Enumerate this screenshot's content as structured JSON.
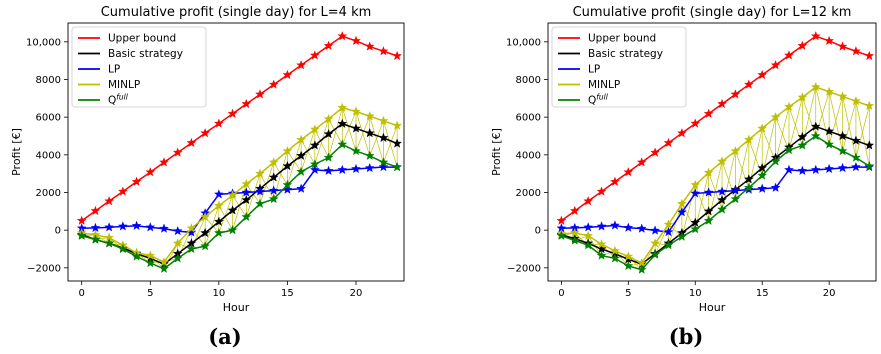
{
  "chart_data": [
    {
      "type": "line",
      "title": "Cumulative profit (single day) for L=4 km",
      "xlabel": "Hour",
      "ylabel": "Profit [€]",
      "xlim": [
        -1,
        23.5
      ],
      "ylim": [
        -2700,
        11000
      ],
      "xticks": [
        0,
        5,
        10,
        15,
        20
      ],
      "xtick_labels": [
        "0",
        "5",
        "10",
        "15",
        "20"
      ],
      "yticks": [
        -2000,
        0,
        2000,
        4000,
        6000,
        8000,
        10000
      ],
      "ytick_labels": [
        "−2000",
        "0",
        "2000",
        "4000",
        "6000",
        "8000",
        "10,000"
      ],
      "legend_position": "top-left",
      "hatched_band": "between MINLP and Q-full",
      "grid": false,
      "sublabel": "(a)",
      "x": [
        0,
        1,
        2,
        3,
        4,
        5,
        6,
        7,
        8,
        9,
        10,
        11,
        12,
        13,
        14,
        15,
        16,
        17,
        18,
        19,
        20,
        21,
        22,
        23
      ],
      "series": [
        {
          "name": "Upper bound",
          "color": "#ff0000",
          "marker": "star",
          "values": [
            500,
            1020,
            1540,
            2050,
            2570,
            3080,
            3600,
            4120,
            4630,
            5150,
            5660,
            6180,
            6700,
            7210,
            7730,
            8240,
            8760,
            9280,
            9790,
            10300,
            10050,
            9750,
            9500,
            9250
          ]
        },
        {
          "name": "Basic strategy",
          "color": "#000000",
          "marker": "star",
          "values": [
            -250,
            -500,
            -700,
            -950,
            -1250,
            -1500,
            -1800,
            -1250,
            -700,
            -150,
            450,
            1050,
            1600,
            2200,
            2800,
            3400,
            3950,
            4500,
            5100,
            5650,
            5400,
            5150,
            4900,
            4600
          ]
        },
        {
          "name": "LP",
          "color": "#0000ff",
          "marker": "star",
          "values": [
            100,
            120,
            150,
            200,
            230,
            150,
            80,
            -50,
            -120,
            900,
            1900,
            1950,
            2000,
            2050,
            2100,
            2150,
            2200,
            3200,
            3150,
            3200,
            3250,
            3300,
            3350,
            3350
          ]
        },
        {
          "name": "MINLP",
          "color": "#bfbf00",
          "marker": "star",
          "values": [
            -150,
            -250,
            -400,
            -800,
            -1200,
            -1350,
            -1700,
            -700,
            100,
            700,
            1300,
            1850,
            2450,
            3000,
            3600,
            4200,
            4800,
            5350,
            5900,
            6500,
            6300,
            6050,
            5800,
            5550
          ]
        },
        {
          "name": "Q^full",
          "color": "#008000",
          "marker": "star",
          "values": [
            -300,
            -500,
            -700,
            -1000,
            -1400,
            -1750,
            -2050,
            -1500,
            -1000,
            -850,
            -150,
            0,
            700,
            1400,
            1650,
            2400,
            3100,
            3500,
            3850,
            4550,
            4200,
            3950,
            3600,
            3350
          ]
        }
      ]
    },
    {
      "type": "line",
      "title": "Cumulative profit (single day) for L=12 km",
      "xlabel": "Hour",
      "ylabel": "Profit [€]",
      "xlim": [
        -1,
        23.5
      ],
      "ylim": [
        -2700,
        11000
      ],
      "xticks": [
        0,
        5,
        10,
        15,
        20
      ],
      "xtick_labels": [
        "0",
        "5",
        "10",
        "15",
        "20"
      ],
      "yticks": [
        -2000,
        0,
        2000,
        4000,
        6000,
        8000,
        10000
      ],
      "ytick_labels": [
        "−2000",
        "0",
        "2000",
        "4000",
        "6000",
        "8000",
        "10,000"
      ],
      "legend_position": "top-left",
      "hatched_band": "between MINLP and Q-full",
      "grid": false,
      "sublabel": "(b)",
      "x": [
        0,
        1,
        2,
        3,
        4,
        5,
        6,
        7,
        8,
        9,
        10,
        11,
        12,
        13,
        14,
        15,
        16,
        17,
        18,
        19,
        20,
        21,
        22,
        23
      ],
      "series": [
        {
          "name": "Upper bound",
          "color": "#ff0000",
          "marker": "star",
          "values": [
            500,
            1020,
            1540,
            2050,
            2570,
            3080,
            3600,
            4120,
            4630,
            5150,
            5660,
            6180,
            6700,
            7210,
            7730,
            8240,
            8760,
            9280,
            9790,
            10300,
            10050,
            9750,
            9500,
            9250
          ]
        },
        {
          "name": "Basic strategy",
          "color": "#000000",
          "marker": "star",
          "values": [
            -250,
            -450,
            -700,
            -1000,
            -1250,
            -1550,
            -1800,
            -1250,
            -700,
            -150,
            400,
            1000,
            1600,
            2150,
            2700,
            3300,
            3850,
            4400,
            4950,
            5500,
            5250,
            5000,
            4750,
            4500
          ]
        },
        {
          "name": "LP",
          "color": "#0000ff",
          "marker": "star",
          "values": [
            100,
            120,
            150,
            200,
            250,
            130,
            80,
            -20,
            -100,
            950,
            1950,
            2000,
            2050,
            2100,
            2150,
            2200,
            2250,
            3200,
            3150,
            3200,
            3250,
            3300,
            3350,
            3350
          ]
        },
        {
          "name": "MINLP",
          "color": "#bfbf00",
          "marker": "star",
          "values": [
            -200,
            -150,
            -300,
            -750,
            -1100,
            -1400,
            -1750,
            -700,
            300,
            1400,
            2400,
            3050,
            3650,
            4200,
            4800,
            5400,
            6000,
            6550,
            7050,
            7600,
            7350,
            7100,
            6850,
            6600
          ]
        },
        {
          "name": "Q^full",
          "color": "#008000",
          "marker": "star",
          "values": [
            -300,
            -550,
            -800,
            -1350,
            -1500,
            -1900,
            -2100,
            -1300,
            -800,
            -350,
            50,
            500,
            1100,
            1650,
            2250,
            2900,
            3650,
            4250,
            4500,
            5000,
            4550,
            4200,
            3850,
            3400
          ]
        }
      ]
    }
  ],
  "legend_labels": {
    "upper": "Upper bound",
    "basic": "Basic strategy",
    "lp": "LP",
    "minlp": "MINLP",
    "q_base": "Q",
    "q_sup": "full"
  }
}
